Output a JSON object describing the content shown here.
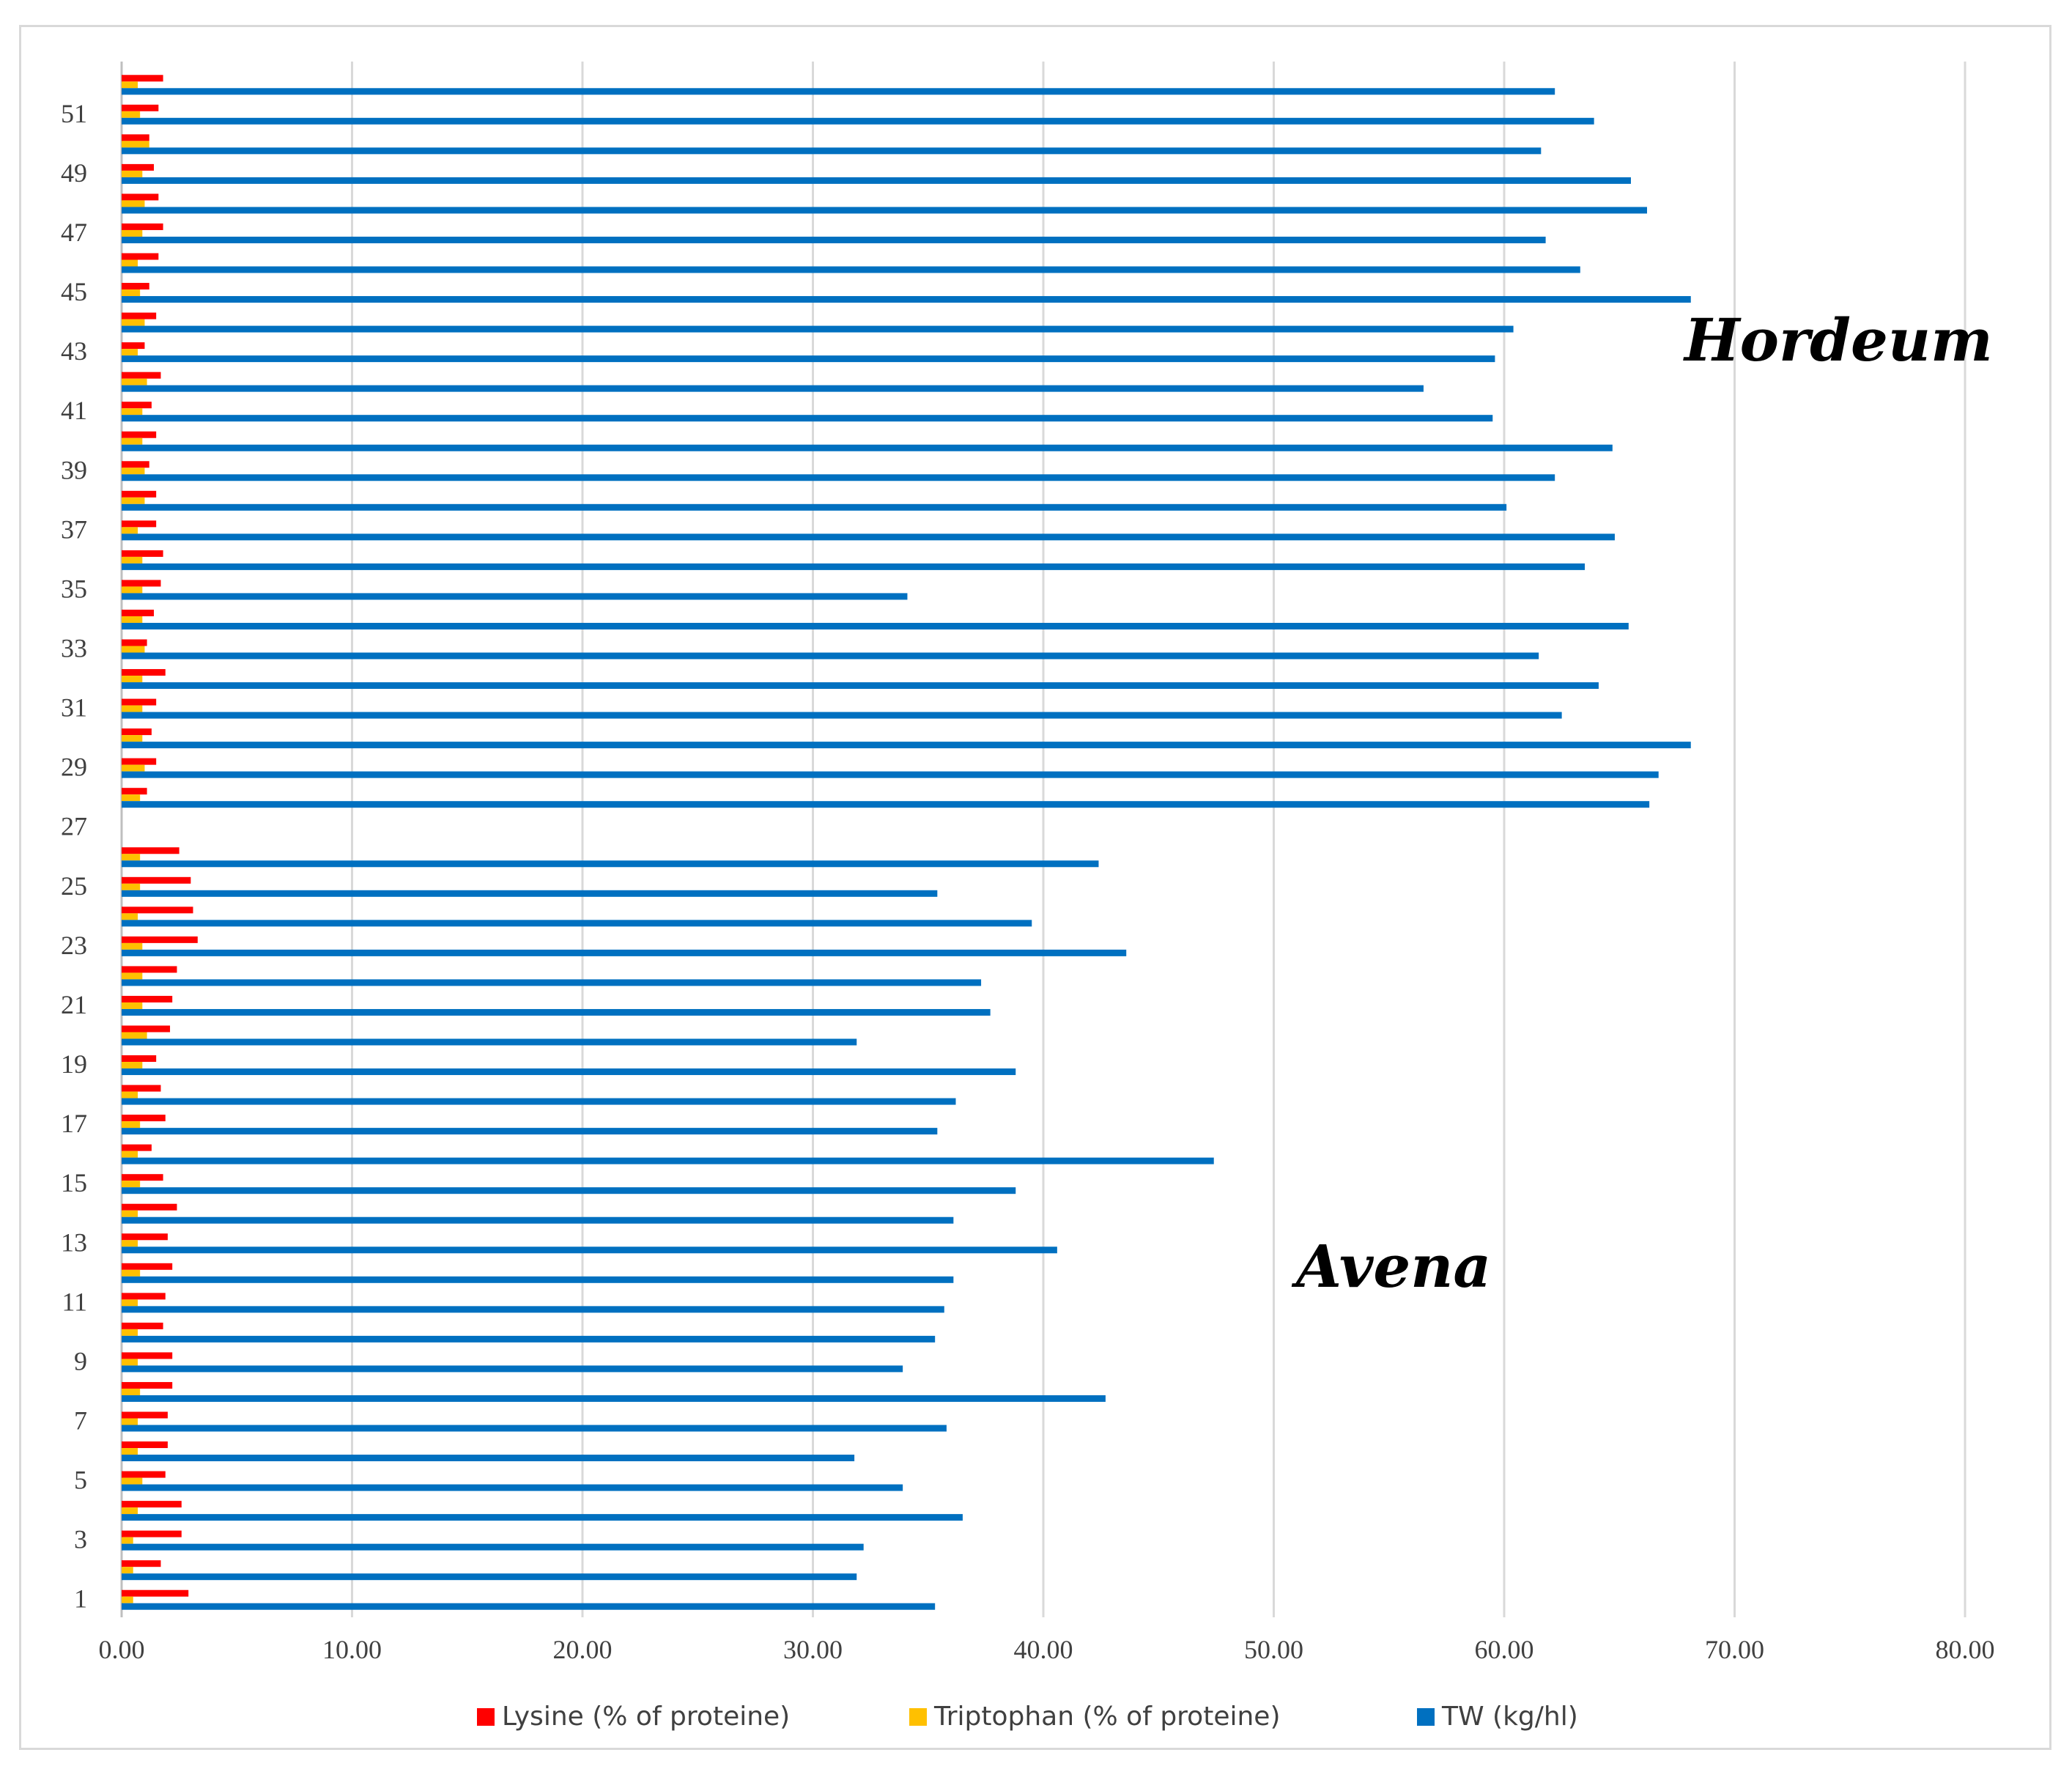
{
  "chart_data": {
    "type": "bar",
    "orientation": "horizontal",
    "title": "",
    "xlabel": "",
    "ylabel": "",
    "xlim": [
      0,
      80
    ],
    "x_ticks": [
      "0.00",
      "10.00",
      "20.00",
      "30.00",
      "40.00",
      "50.00",
      "60.00",
      "70.00",
      "80.00"
    ],
    "y_tick_labels": [
      "1",
      "3",
      "5",
      "7",
      "9",
      "11",
      "13",
      "15",
      "17",
      "19",
      "21",
      "23",
      "25",
      "27",
      "29",
      "31",
      "33",
      "35",
      "37",
      "39",
      "41",
      "43",
      "45",
      "47",
      "49",
      "51"
    ],
    "categories": [
      1,
      2,
      3,
      4,
      5,
      6,
      7,
      8,
      9,
      10,
      11,
      12,
      13,
      14,
      15,
      16,
      17,
      18,
      19,
      20,
      21,
      22,
      23,
      24,
      25,
      26,
      27,
      28,
      29,
      30,
      31,
      32,
      33,
      34,
      35,
      36,
      37,
      38,
      39,
      40,
      41,
      42,
      43,
      44,
      45,
      46,
      47,
      48,
      49,
      50,
      51,
      52
    ],
    "series": [
      {
        "name": "Lysine (% of proteine)",
        "color": "#ff0000",
        "values": [
          2.9,
          1.7,
          2.6,
          2.6,
          1.9,
          2.0,
          2.0,
          2.2,
          2.2,
          1.8,
          1.9,
          2.2,
          2.0,
          2.4,
          1.8,
          1.3,
          1.9,
          1.7,
          1.5,
          2.1,
          2.2,
          2.4,
          3.3,
          3.1,
          3.0,
          2.5,
          null,
          1.1,
          1.5,
          1.3,
          1.5,
          1.9,
          1.1,
          1.4,
          1.7,
          1.8,
          1.5,
          1.5,
          1.2,
          1.5,
          1.3,
          1.7,
          1.0,
          1.5,
          1.2,
          1.6,
          1.8,
          1.6,
          1.4,
          1.2,
          1.6,
          1.8
        ]
      },
      {
        "name": "Triptophan (% of proteine)",
        "color": "#ffc000",
        "values": [
          0.5,
          0.5,
          0.5,
          0.7,
          0.9,
          0.7,
          0.7,
          0.8,
          0.7,
          0.7,
          0.7,
          0.8,
          0.7,
          0.7,
          0.8,
          0.7,
          0.8,
          0.7,
          0.9,
          1.1,
          0.9,
          0.9,
          0.9,
          0.7,
          0.8,
          0.8,
          null,
          0.8,
          1.0,
          0.9,
          0.9,
          0.9,
          1.0,
          0.9,
          0.9,
          0.9,
          0.7,
          1.0,
          1.0,
          0.9,
          0.9,
          1.1,
          0.7,
          1.0,
          0.8,
          0.7,
          0.9,
          1.0,
          0.9,
          1.2,
          0.8,
          0.7
        ]
      },
      {
        "name": "TW (kg/hl)",
        "color": "#0070c0",
        "values": [
          35.3,
          31.9,
          32.2,
          36.5,
          33.9,
          31.8,
          35.8,
          42.7,
          33.9,
          35.3,
          35.7,
          36.1,
          40.6,
          36.1,
          38.8,
          47.4,
          35.4,
          36.2,
          38.8,
          31.9,
          37.7,
          37.3,
          43.6,
          39.5,
          35.4,
          42.4,
          null,
          66.3,
          66.7,
          68.1,
          62.5,
          64.1,
          61.5,
          65.4,
          34.1,
          63.5,
          64.8,
          60.1,
          62.2,
          64.7,
          59.5,
          56.5,
          59.6,
          60.4,
          68.1,
          63.3,
          61.8,
          66.2,
          65.5,
          61.6,
          63.9,
          62.2
        ]
      }
    ],
    "legend": [
      "Lysine (% of proteine)",
      "Triptophan (% of proteine)",
      "TW (kg/hl)"
    ],
    "legend_position": "bottom",
    "annotations": [
      "Hordeum",
      "Avena"
    ],
    "grid": "vertical"
  }
}
